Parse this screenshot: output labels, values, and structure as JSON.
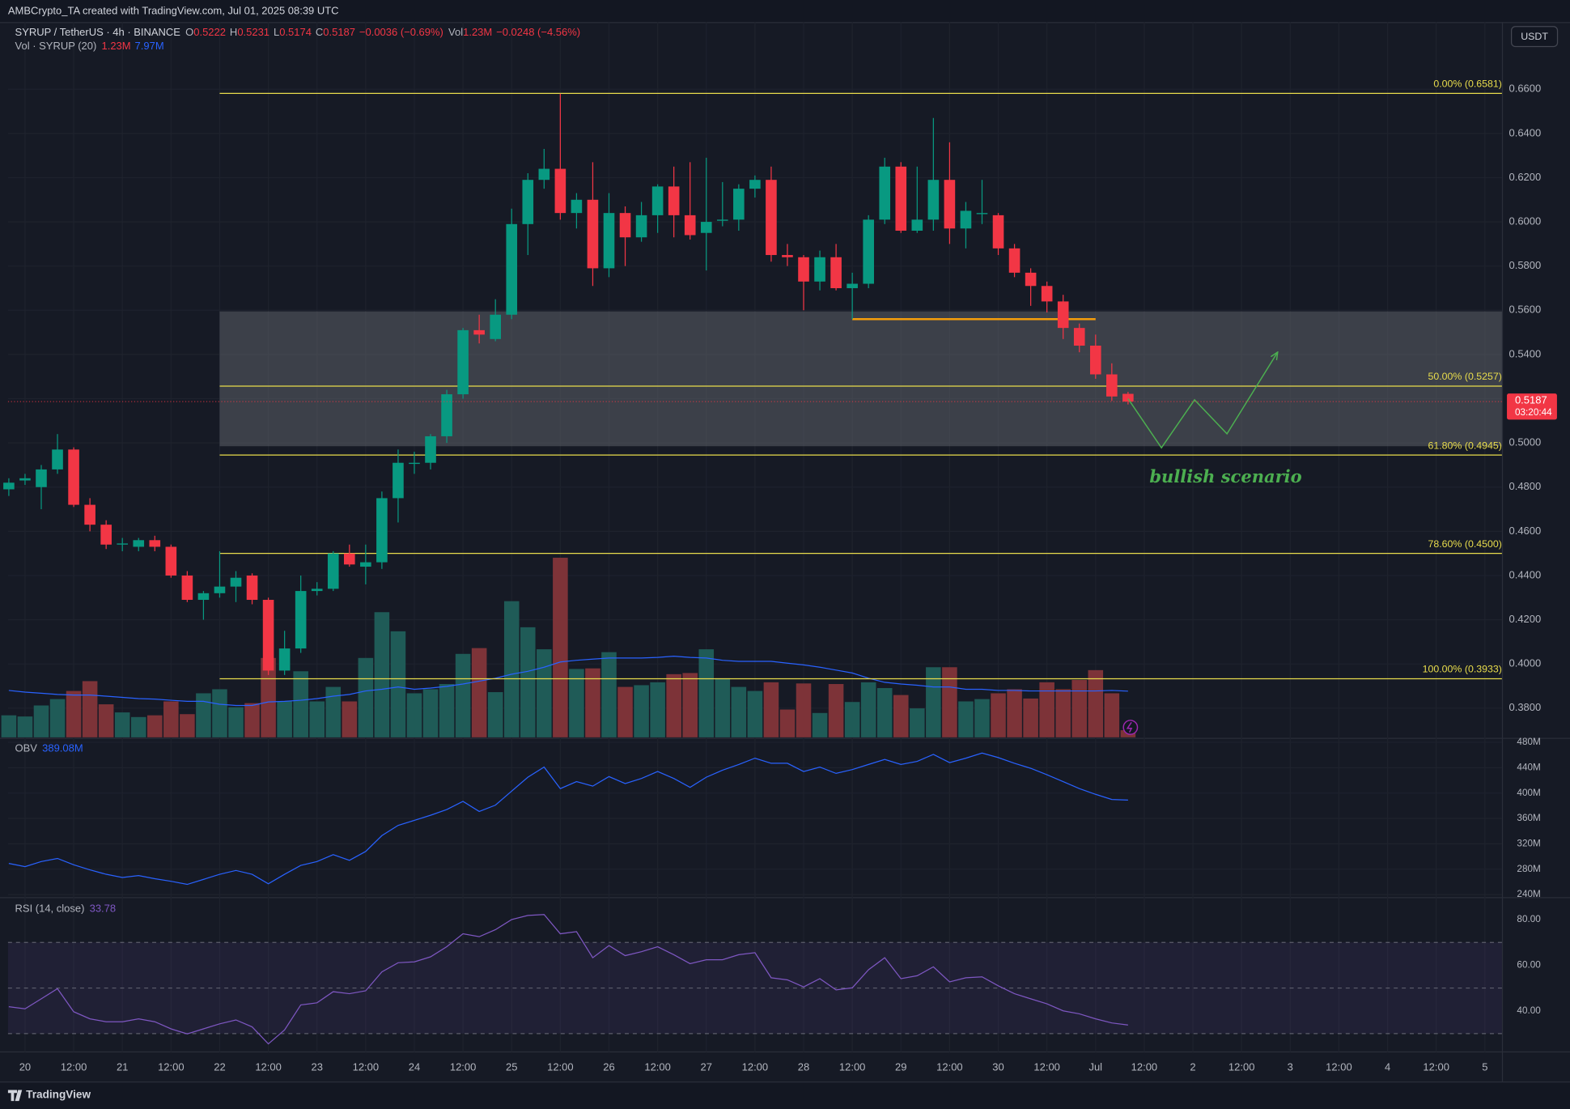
{
  "header": {
    "credit": "AMBCrypto_TA created with TradingView.com, Jul 01, 2025 08:39 UTC",
    "symbol": "SYRUP / TetherUS · 4h · BINANCE",
    "ohlc": [
      [
        "O",
        "0.5222"
      ],
      [
        "H",
        "0.5231"
      ],
      [
        "L",
        "0.5174"
      ],
      [
        "C",
        "0.5187"
      ]
    ],
    "change": "−0.0036 (−0.69%)",
    "vol_key": "Vol",
    "vol": "1.23M",
    "vol_change": "−0.0248 (−4.56%)",
    "currency": "USDT",
    "footer": "TradingView"
  },
  "chart_data": [
    {
      "type": "candlestick",
      "up_color": "#089981",
      "down_color": "#f23645",
      "x": [
        0,
        1,
        2,
        3,
        4,
        5,
        6,
        7,
        8,
        9,
        10,
        11,
        12,
        13,
        14,
        15,
        16,
        17,
        18,
        19,
        20,
        21,
        22,
        23,
        24,
        25,
        26,
        27,
        28,
        29,
        30,
        31,
        32,
        33,
        34,
        35,
        36,
        37,
        38,
        39,
        40,
        41,
        42,
        43,
        44,
        45,
        46,
        47,
        48,
        49,
        50,
        51,
        52,
        53,
        54,
        55,
        56,
        57,
        58,
        59,
        60,
        61,
        62,
        63,
        64,
        65,
        66,
        67,
        68,
        69
      ],
      "open": [
        0.479,
        0.483,
        0.48,
        0.488,
        0.497,
        0.472,
        0.463,
        0.454,
        0.453,
        0.456,
        0.453,
        0.44,
        0.429,
        0.432,
        0.435,
        0.44,
        0.429,
        0.397,
        0.407,
        0.433,
        0.434,
        0.45,
        0.444,
        0.446,
        0.475,
        0.4905,
        0.491,
        0.503,
        0.522,
        0.551,
        0.547,
        0.558,
        0.599,
        0.619,
        0.624,
        0.604,
        0.61,
        0.579,
        0.604,
        0.593,
        0.603,
        0.616,
        0.603,
        0.595,
        0.6005,
        0.601,
        0.615,
        0.619,
        0.585,
        0.584,
        0.573,
        0.584,
        0.57,
        0.572,
        0.601,
        0.625,
        0.596,
        0.601,
        0.619,
        0.597,
        0.6035,
        0.603,
        0.588,
        0.577,
        0.571,
        0.564,
        0.552,
        0.544,
        0.531,
        0.5222
      ],
      "high": [
        0.484,
        0.486,
        0.49,
        0.504,
        0.498,
        0.475,
        0.465,
        0.457,
        0.457,
        0.458,
        0.454,
        0.442,
        0.433,
        0.451,
        0.442,
        0.441,
        0.43,
        0.415,
        0.44,
        0.437,
        0.451,
        0.454,
        0.454,
        0.478,
        0.497,
        0.496,
        0.504,
        0.524,
        0.552,
        0.558,
        0.565,
        0.606,
        0.622,
        0.633,
        0.658,
        0.613,
        0.627,
        0.613,
        0.607,
        0.609,
        0.617,
        0.625,
        0.627,
        0.629,
        0.618,
        0.617,
        0.621,
        0.625,
        0.59,
        0.585,
        0.587,
        0.59,
        0.577,
        0.603,
        0.629,
        0.627,
        0.625,
        0.647,
        0.636,
        0.609,
        0.619,
        0.604,
        0.59,
        0.579,
        0.573,
        0.567,
        0.554,
        0.549,
        0.536,
        0.5231
      ],
      "low": [
        0.476,
        0.481,
        0.47,
        0.486,
        0.471,
        0.46,
        0.452,
        0.451,
        0.451,
        0.451,
        0.439,
        0.428,
        0.42,
        0.43,
        0.428,
        0.427,
        0.395,
        0.395,
        0.405,
        0.431,
        0.433,
        0.444,
        0.436,
        0.443,
        0.464,
        0.486,
        0.488,
        0.5,
        0.52,
        0.545,
        0.546,
        0.556,
        0.585,
        0.615,
        0.601,
        0.597,
        0.571,
        0.575,
        0.58,
        0.591,
        0.595,
        0.593,
        0.592,
        0.578,
        0.598,
        0.596,
        0.611,
        0.582,
        0.58,
        0.56,
        0.569,
        0.569,
        0.556,
        0.57,
        0.599,
        0.595,
        0.595,
        0.596,
        0.59,
        0.588,
        0.599,
        0.585,
        0.575,
        0.562,
        0.559,
        0.547,
        0.541,
        0.529,
        0.519,
        0.5174
      ],
      "close": [
        0.482,
        0.484,
        0.488,
        0.497,
        0.472,
        0.463,
        0.454,
        0.4545,
        0.456,
        0.453,
        0.44,
        0.429,
        0.432,
        0.435,
        0.439,
        0.429,
        0.397,
        0.407,
        0.433,
        0.434,
        0.45,
        0.445,
        0.446,
        0.475,
        0.491,
        0.491,
        0.503,
        0.522,
        0.551,
        0.549,
        0.558,
        0.599,
        0.619,
        0.624,
        0.604,
        0.61,
        0.579,
        0.604,
        0.593,
        0.603,
        0.616,
        0.603,
        0.594,
        0.6,
        0.601,
        0.615,
        0.619,
        0.585,
        0.584,
        0.573,
        0.584,
        0.57,
        0.572,
        0.601,
        0.625,
        0.596,
        0.601,
        0.619,
        0.597,
        0.605,
        0.604,
        0.588,
        0.577,
        0.571,
        0.564,
        0.552,
        0.544,
        0.531,
        0.521,
        0.5187
      ],
      "xlim": [
        -0.05,
        92.05
      ],
      "xticks": [
        {
          "value": 1,
          "label": "20"
        },
        {
          "value": 4,
          "label": "12:00"
        },
        {
          "value": 7,
          "label": "21"
        },
        {
          "value": 10,
          "label": "12:00"
        },
        {
          "value": 13,
          "label": "22"
        },
        {
          "value": 16,
          "label": "12:00"
        },
        {
          "value": 19,
          "label": "23"
        },
        {
          "value": 22,
          "label": "12:00"
        },
        {
          "value": 25,
          "label": "24"
        },
        {
          "value": 28,
          "label": "12:00"
        },
        {
          "value": 31,
          "label": "25"
        },
        {
          "value": 34,
          "label": "12:00"
        },
        {
          "value": 37,
          "label": "26"
        },
        {
          "value": 40,
          "label": "12:00"
        },
        {
          "value": 43,
          "label": "27"
        },
        {
          "value": 46,
          "label": "12:00"
        },
        {
          "value": 49,
          "label": "28"
        },
        {
          "value": 52,
          "label": "12:00"
        },
        {
          "value": 55,
          "label": "29"
        },
        {
          "value": 58,
          "label": "12:00"
        },
        {
          "value": 61,
          "label": "30"
        },
        {
          "value": 64,
          "label": "12:00"
        },
        {
          "value": 67,
          "label": "Jul"
        },
        {
          "value": 70,
          "label": "12:00"
        },
        {
          "value": 73,
          "label": "2"
        },
        {
          "value": 76,
          "label": "12:00"
        },
        {
          "value": 79,
          "label": "3"
        },
        {
          "value": 82,
          "label": "12:00"
        },
        {
          "value": 85,
          "label": "4"
        },
        {
          "value": 88,
          "label": "12:00"
        },
        {
          "value": 91,
          "label": "5"
        }
      ],
      "ylim": [
        0.3668,
        0.6904
      ],
      "yticks": [
        {
          "value": 0.38,
          "label": "0.3800"
        },
        {
          "value": 0.4,
          "label": "0.4000"
        },
        {
          "value": 0.42,
          "label": "0.4200"
        },
        {
          "value": 0.44,
          "label": "0.4400"
        },
        {
          "value": 0.46,
          "label": "0.4600"
        },
        {
          "value": 0.48,
          "label": "0.4800"
        },
        {
          "value": 0.5,
          "label": "0.5000"
        },
        {
          "value": 0.52,
          "label": "0.5200"
        },
        {
          "value": 0.54,
          "label": "0.5400"
        },
        {
          "value": 0.56,
          "label": "0.5600"
        },
        {
          "value": 0.58,
          "label": "0.5800"
        },
        {
          "value": 0.6,
          "label": "0.6000"
        },
        {
          "value": 0.62,
          "label": "0.6200"
        },
        {
          "value": 0.64,
          "label": "0.6400"
        },
        {
          "value": 0.66,
          "label": "0.6600"
        }
      ],
      "grid": true,
      "fib_start_x": 13,
      "fib_color": "#e8dc4c",
      "fib_levels": [
        {
          "value": 0.6581,
          "label": "0.00% (0.6581)"
        },
        {
          "value": 0.5257,
          "label": "50.00% (0.5257)"
        },
        {
          "value": 0.4945,
          "label": "61.80% (0.4945)"
        },
        {
          "value": 0.45,
          "label": "78.60% (0.4500)"
        },
        {
          "value": 0.3933,
          "label": "100.00% (0.3933)"
        }
      ],
      "zone": {
        "from": 0.4985,
        "to": 0.5595,
        "start_x": 13,
        "color": "#5d6068"
      },
      "support": {
        "value": 0.556,
        "x": [
          52,
          67
        ],
        "color": "#f59e0b"
      },
      "scenario": {
        "label": "bullish scenario",
        "color": "#4caf50",
        "x": [
          69,
          71.06,
          73.1,
          75.1,
          78.2
        ],
        "y": [
          0.52,
          0.4978,
          0.5195,
          0.5041,
          0.5408
        ]
      },
      "last_price": {
        "value": 0.5187,
        "label": "0.5187",
        "countdown": "03:20:44"
      }
    },
    {
      "type": "bar",
      "title": "Vol · SYRUP (20)",
      "value_label": "1.23M",
      "ma_label": "7.97M",
      "up_color": "#1f5b57",
      "down_color": "#7d3338",
      "ma_color": "#2962ff",
      "ylim": [
        0,
        60
      ],
      "values": [
        3.8,
        3.6,
        5.5,
        6.6,
        8.0,
        9.7,
        5.7,
        4.3,
        3.5,
        3.8,
        6.2,
        4.0,
        7.6,
        8.3,
        5.2,
        5.9,
        13.7,
        6.2,
        11.4,
        6.2,
        8.7,
        6.2,
        13.7,
        21.6,
        18.3,
        7.6,
        8.3,
        9.2,
        14.4,
        15.4,
        7.8,
        23.5,
        19.0,
        15.2,
        31.0,
        11.8,
        11.9,
        14.7,
        8.7,
        9.0,
        9.5,
        10.9,
        11.1,
        15.2,
        10.2,
        8.7,
        8.0,
        9.5,
        4.8,
        9.3,
        4.2,
        9.2,
        6.1,
        9.5,
        8.5,
        7.3,
        5.0,
        12.1,
        12.1,
        6.2,
        6.6,
        7.6,
        8.3,
        6.7,
        9.5,
        8.3,
        9.9,
        11.6,
        7.6,
        1.23
      ],
      "ma_values": [
        8.1,
        7.8,
        7.6,
        7.4,
        7.3,
        7.3,
        7.1,
        6.9,
        6.7,
        6.6,
        6.4,
        6.2,
        6.2,
        5.7,
        5.5,
        5.5,
        6.1,
        6.2,
        6.4,
        6.7,
        7.1,
        7.4,
        8.0,
        8.3,
        8.7,
        8.3,
        8.5,
        8.8,
        9.2,
        9.7,
        10.2,
        10.9,
        11.4,
        12.1,
        13.0,
        13.3,
        13.5,
        13.7,
        13.7,
        13.7,
        13.8,
        14.0,
        13.8,
        13.7,
        13.3,
        13.1,
        13.1,
        13.1,
        12.8,
        12.5,
        12.1,
        11.6,
        11.1,
        10.2,
        9.5,
        9.2,
        9.0,
        8.7,
        8.7,
        8.3,
        8.3,
        8.1,
        8.1,
        8.0,
        8.0,
        8.0,
        8.0,
        8.0,
        8.1,
        7.97
      ]
    },
    {
      "type": "line",
      "title": "OBV",
      "value_label": "389.08M",
      "color": "#2962ff",
      "ylim": [
        236.8,
        484.7
      ],
      "yticks": [
        {
          "value": 240,
          "label": "240M"
        },
        {
          "value": 280,
          "label": "280M"
        },
        {
          "value": 320,
          "label": "320M"
        },
        {
          "value": 360,
          "label": "360M"
        },
        {
          "value": 400,
          "label": "400M"
        },
        {
          "value": 440,
          "label": "440M"
        },
        {
          "value": 480,
          "label": "480M"
        }
      ],
      "values": [
        289,
        284,
        292,
        297,
        287,
        279,
        272,
        267,
        270,
        265,
        261,
        256,
        264,
        272,
        278,
        272,
        257,
        272,
        286,
        292,
        303,
        294,
        308,
        333,
        349,
        357,
        365,
        374,
        387,
        371,
        381,
        403,
        425,
        441,
        407,
        418,
        411,
        426,
        415,
        423,
        434,
        423,
        409,
        425,
        436,
        445,
        455,
        447,
        447,
        434,
        441,
        431,
        437,
        445,
        453,
        445,
        450,
        461,
        448,
        455,
        463,
        456,
        447,
        439,
        429,
        418,
        407,
        398,
        390,
        389.08
      ]
    },
    {
      "type": "line",
      "title": "RSI (14, close)",
      "value_label": "33.78",
      "color": "#7e57c2",
      "ylim": [
        22.0,
        89.2
      ],
      "yticks": [
        {
          "value": 40,
          "label": "40.00"
        },
        {
          "value": 60,
          "label": "60.00"
        },
        {
          "value": 80,
          "label": "80.00"
        }
      ],
      "bands": {
        "upper": 70,
        "middle": 50,
        "lower": 30
      },
      "values": [
        41.8,
        40.9,
        45.3,
        49.7,
        39.6,
        36.5,
        35.2,
        35.2,
        36.5,
        35.2,
        32.1,
        29.9,
        32.1,
        34.3,
        36.0,
        33.0,
        25.5,
        31.6,
        42.6,
        43.5,
        48.4,
        47.5,
        48.8,
        57.1,
        61.1,
        61.5,
        63.7,
        68.1,
        73.8,
        72.5,
        75.6,
        80.0,
        81.8,
        82.2,
        73.8,
        74.7,
        63.3,
        68.6,
        64.2,
        65.9,
        68.1,
        64.6,
        60.7,
        62.4,
        62.4,
        64.6,
        65.5,
        54.5,
        53.6,
        50.5,
        54.1,
        49.2,
        50.1,
        58.0,
        63.3,
        54.1,
        55.4,
        59.3,
        52.7,
        54.5,
        54.9,
        51.0,
        47.5,
        45.3,
        43.1,
        40.0,
        38.7,
        36.5,
        34.7,
        33.78
      ]
    }
  ]
}
